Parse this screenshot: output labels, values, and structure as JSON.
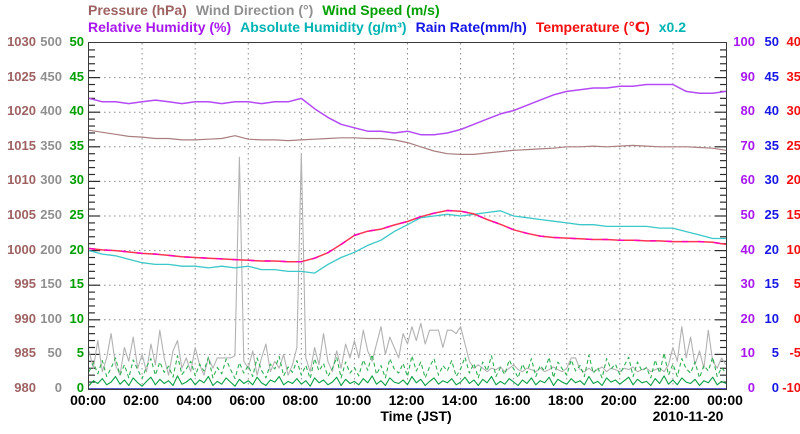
{
  "legend": {
    "pressure": "Pressure (hPa)",
    "wind_direction": "Wind Direction (°)",
    "wind_speed": "Wind Speed (m/s)",
    "relative_humidity": "Relative Humidity (%)",
    "absolute_humidity": "Absolute Humidity (g/m³)",
    "rain_rate": "Rain Rate(mm/h)",
    "temperature": "Temperature (℃)",
    "scale_note": "x0.2"
  },
  "colors": {
    "pressure": "#9e6262",
    "wind_direction": "#909090",
    "wind_speed": "#00a000",
    "relative_humidity": "#a816f0",
    "absolute_humidity": "#00b4b4",
    "rain_rate": "#1616e6",
    "temperature": "#f50f0f",
    "scale_note": "#00b4b4",
    "axis_text": "#000000",
    "grid": "#8c8c8c",
    "plot_border": "#3a3a3a"
  },
  "y_axes": {
    "left_columns": [
      {
        "name": "pressure",
        "unit": "hPa",
        "color": "#9e6262",
        "values": [
          "1030",
          "1025",
          "1020",
          "1015",
          "1010",
          "1005",
          "1000",
          "995",
          "990",
          "985",
          "980"
        ]
      },
      {
        "name": "wind_direction",
        "unit": "deg",
        "color": "#909090",
        "values": [
          "500",
          "450",
          "400",
          "350",
          "300",
          "250",
          "200",
          "150",
          "100",
          "50",
          "0"
        ]
      },
      {
        "name": "wind_speed",
        "unit": "m/s",
        "color": "#00a000",
        "values": [
          "50",
          "45",
          "40",
          "35",
          "30",
          "25",
          "20",
          "15",
          "10",
          "5",
          "0"
        ]
      }
    ],
    "right_columns": [
      {
        "name": "relative_humidity",
        "unit": "%",
        "color": "#a816f0",
        "values": [
          "100",
          "90",
          "80",
          "70",
          "60",
          "50",
          "40",
          "30",
          "20",
          "10",
          "0"
        ]
      },
      {
        "name": "rain_rate",
        "unit": "mm/h",
        "color": "#1616e6",
        "values": [
          "50",
          "45",
          "40",
          "35",
          "30",
          "25",
          "20",
          "15",
          "10",
          "5",
          "0"
        ]
      },
      {
        "name": "temperature",
        "unit": "C",
        "color": "#f50f0f",
        "values": [
          "40",
          "35",
          "30",
          "25",
          "20",
          "15",
          "10",
          "5",
          "0",
          "-5",
          "-10"
        ]
      }
    ]
  },
  "x_axis": {
    "labels": [
      "00:00",
      "02:00",
      "04:00",
      "06:00",
      "08:00",
      "10:00",
      "12:00",
      "14:00",
      "16:00",
      "18:00",
      "20:00",
      "22:00",
      "00:00"
    ],
    "title": "Time (JST)",
    "date": "2010-11-20"
  },
  "chart_data": {
    "type": "line",
    "title": "Weather observations, 2010-11-20 (JST)",
    "xlabel": "Time (JST)",
    "x_range_hours": [
      0,
      24
    ],
    "x_gridlines_every_hours": 2,
    "y_gridlines": "dotted, every major tick (10 divisions)",
    "legend_position": "top",
    "scale_note": "absolute humidity read on relative-humidity axis x0.2 (0-20 g/m3)",
    "series": [
      {
        "name": "Wind Direction",
        "unit": "deg",
        "color": "#b2b2b2",
        "width": 1.1,
        "axis_range": [
          0,
          500
        ],
        "interval_h": 0.1666667,
        "values": [
          55,
          30,
          70,
          25,
          45,
          80,
          35,
          20,
          60,
          40,
          75,
          30,
          50,
          25,
          65,
          35,
          85,
          45,
          20,
          55,
          70,
          30,
          45,
          25,
          60,
          35,
          20,
          45,
          30,
          45,
          45,
          45,
          45,
          48,
          335,
          40,
          30,
          55,
          20,
          45,
          65,
          25,
          40,
          30,
          50,
          20,
          35,
          60,
          340,
          45,
          25,
          60,
          35,
          80,
          40,
          25,
          55,
          30,
          65,
          45,
          70,
          45,
          85,
          55,
          40,
          65,
          90,
          50,
          75,
          60,
          45,
          80,
          65,
          90,
          70,
          95,
          65,
          85,
          85,
          85,
          60,
          85,
          85,
          80,
          90,
          65,
          40,
          30,
          35,
          30,
          25,
          30,
          28,
          32,
          25,
          30,
          35,
          28,
          25,
          30,
          28,
          25,
          30,
          25,
          28,
          32,
          28,
          25,
          30,
          45,
          45,
          28,
          25,
          30,
          25,
          28,
          32,
          25,
          30,
          28,
          25,
          30,
          28,
          32,
          25,
          28,
          30,
          25,
          28,
          30,
          25,
          35,
          60,
          40,
          90,
          45,
          75,
          35,
          55,
          30,
          85,
          40,
          30,
          45,
          35
        ]
      },
      {
        "name": "Wind Speed (gust, dashed)",
        "unit": "m/s",
        "color": "#2eb050",
        "width": 1.1,
        "dash": "4 3",
        "axis_range": [
          0,
          50
        ],
        "interval_h": 0.1666667,
        "values": [
          2.5,
          3.8,
          2.2,
          4.1,
          1.8,
          3.0,
          4.5,
          2.0,
          3.5,
          1.6,
          4.2,
          2.8,
          1.5,
          3.2,
          4.4,
          2.0,
          3.9,
          2.4,
          3.3,
          1.7,
          4.8,
          2.1,
          2.9,
          4.0,
          1.9,
          3.6,
          2.6,
          4.6,
          1.6,
          3.1,
          2.2,
          4.3,
          2.8,
          1.5,
          3.8,
          2.3,
          3.4,
          1.8,
          4.5,
          2.7,
          1.6,
          3.6,
          2.9,
          4.7,
          1.9,
          3.2,
          2.4,
          4.1,
          2.0,
          3.4,
          1.5,
          4.4,
          2.6,
          3.7,
          1.8,
          2.9,
          4.6,
          1.6,
          3.9,
          2.3,
          3.1,
          1.9,
          4.2,
          2.7,
          5.0,
          2.1,
          3.4,
          1.6,
          4.4,
          2.9,
          2.3,
          3.7,
          1.8,
          4.8,
          2.6,
          3.9,
          1.6,
          3.2,
          4.4,
          2.0,
          3.4,
          2.6,
          4.1,
          1.8,
          2.9,
          4.6,
          2.3,
          3.7,
          1.6,
          3.9,
          2.6,
          4.8,
          1.8,
          3.1,
          2.1,
          4.2,
          2.9,
          1.6,
          3.6,
          2.3,
          4.4,
          1.8,
          3.4,
          2.6,
          4.6,
          1.6,
          3.9,
          2.9,
          2.0,
          4.2,
          2.6,
          3.4,
          1.8,
          4.9,
          2.3,
          3.1,
          1.6,
          4.4,
          2.9,
          3.6,
          2.1,
          3.4,
          4.6,
          1.8,
          3.9,
          2.6,
          3.1,
          1.6,
          4.2,
          2.3,
          5.2,
          2.0,
          3.6,
          1.8,
          4.4,
          2.9,
          2.3,
          3.9,
          1.6,
          3.4,
          2.6,
          4.6,
          1.8,
          3.1,
          2.3
        ]
      },
      {
        "name": "Wind Speed",
        "unit": "m/s",
        "color": "#0aa044",
        "width": 1.1,
        "axis_range": [
          0,
          50
        ],
        "interval_h": 0.1666667,
        "values": [
          0.5,
          1.2,
          0.8,
          1.5,
          0.6,
          1.0,
          1.8,
          0.7,
          1.3,
          0.5,
          1.6,
          0.9,
          0.4,
          1.1,
          1.7,
          0.6,
          1.4,
          0.8,
          1.2,
          0.5,
          1.9,
          0.7,
          1.0,
          1.5,
          0.6,
          1.3,
          0.9,
          1.8,
          0.5,
          1.1,
          0.7,
          1.6,
          1.0,
          0.4,
          1.4,
          0.8,
          1.2,
          0.6,
          1.7,
          0.9,
          0.5,
          1.3,
          1.0,
          1.8,
          0.6,
          1.1,
          0.8,
          1.5,
          0.7,
          1.2,
          0.4,
          1.6,
          0.9,
          1.3,
          0.6,
          1.0,
          1.7,
          0.5,
          1.4,
          0.8,
          1.1,
          0.6,
          1.5,
          0.9,
          1.9,
          0.7,
          1.2,
          0.5,
          1.6,
          1.0,
          0.8,
          1.3,
          0.6,
          1.8,
          0.9,
          1.4,
          0.5,
          1.1,
          1.6,
          0.7,
          1.2,
          0.9,
          1.5,
          0.6,
          1.0,
          1.7,
          0.8,
          1.3,
          0.5,
          1.4,
          0.9,
          1.8,
          0.6,
          1.1,
          0.7,
          1.5,
          1.0,
          0.5,
          1.3,
          0.8,
          1.6,
          0.6,
          1.2,
          0.9,
          1.7,
          0.5,
          1.4,
          1.0,
          0.7,
          1.5,
          0.9,
          1.2,
          0.6,
          1.8,
          0.8,
          1.1,
          0.5,
          1.6,
          1.0,
          1.3,
          0.7,
          1.2,
          1.7,
          0.6,
          1.4,
          0.9,
          1.1,
          0.5,
          1.5,
          0.8,
          1.9,
          0.7,
          1.3,
          0.6,
          1.6,
          1.0,
          0.8,
          1.4,
          0.5,
          1.2,
          0.9,
          1.7,
          0.6,
          1.1,
          0.8
        ]
      },
      {
        "name": "Rain Rate",
        "unit": "mm/h",
        "color": "#2222cc",
        "width": 1.4,
        "axis_range": [
          0,
          50
        ],
        "interval_h": 24,
        "values": [
          0,
          0
        ]
      },
      {
        "name": "Pressure",
        "unit": "hPa",
        "color": "#aa7e7e",
        "width": 1.2,
        "axis_range": [
          980,
          1030
        ],
        "interval_h": 0.5,
        "values": [
          1017.4,
          1017.1,
          1016.8,
          1016.5,
          1016.4,
          1016.2,
          1016.2,
          1016.0,
          1016.0,
          1016.1,
          1016.2,
          1016.6,
          1016.1,
          1016.0,
          1016.0,
          1015.9,
          1016.0,
          1016.1,
          1016.2,
          1016.3,
          1016.3,
          1016.2,
          1016.2,
          1016.0,
          1015.6,
          1015.0,
          1014.4,
          1014.0,
          1013.9,
          1013.9,
          1014.1,
          1014.3,
          1014.5,
          1014.6,
          1014.7,
          1014.8,
          1015.0,
          1015.0,
          1015.1,
          1015.0,
          1015.1,
          1015.2,
          1015.1,
          1015.0,
          1015.0,
          1015.0,
          1014.9,
          1014.8,
          1014.5
        ]
      },
      {
        "name": "Absolute Humidity",
        "unit": "g/m3",
        "color": "#3cc8c8",
        "width": 1.3,
        "axis_range": [
          0,
          20
        ],
        "interval_h": 0.5,
        "values": [
          8.0,
          7.8,
          7.7,
          7.5,
          7.3,
          7.2,
          7.2,
          7.1,
          7.1,
          7.0,
          7.1,
          7.0,
          7.1,
          6.9,
          6.9,
          6.8,
          6.8,
          6.7,
          7.2,
          7.6,
          7.9,
          8.3,
          8.6,
          9.1,
          9.5,
          9.9,
          10.0,
          10.1,
          10.0,
          10.1,
          10.2,
          10.3,
          10.0,
          9.9,
          9.8,
          9.7,
          9.6,
          9.5,
          9.5,
          9.4,
          9.4,
          9.4,
          9.4,
          9.3,
          9.3,
          9.1,
          8.9,
          8.7,
          8.7
        ]
      },
      {
        "name": "Relative Humidity",
        "unit": "%",
        "color": "#b44af5",
        "width": 1.5,
        "axis_range": [
          0,
          100
        ],
        "interval_h": 0.5,
        "values": [
          84,
          83,
          83,
          82.5,
          83,
          83.5,
          83,
          82.5,
          83,
          83,
          82.5,
          83,
          83,
          82.5,
          83,
          83,
          84,
          81,
          78.5,
          76.5,
          75.5,
          74.5,
          74.5,
          74,
          74.5,
          73.5,
          73.5,
          74,
          75,
          76.5,
          78,
          79.5,
          80.5,
          82,
          83.5,
          85,
          86,
          86.5,
          87,
          87,
          87.5,
          87.5,
          88,
          88,
          88,
          86,
          85.5,
          85.5,
          86
        ]
      },
      {
        "name": "Temperature",
        "unit": "C",
        "color": "#ff3352",
        "overlay_dash_color": "#ff00bb",
        "width": 1.5,
        "axis_range": [
          -10,
          40
        ],
        "interval_h": 0.5,
        "values": [
          10.3,
          10.1,
          10.0,
          9.8,
          9.6,
          9.5,
          9.3,
          9.1,
          9.0,
          8.9,
          8.8,
          8.7,
          8.6,
          8.5,
          8.5,
          8.4,
          8.4,
          8.9,
          9.7,
          10.9,
          12.2,
          12.8,
          13.1,
          13.7,
          14.2,
          14.9,
          15.4,
          15.8,
          15.7,
          15.3,
          14.5,
          13.8,
          13.0,
          12.5,
          12.1,
          11.9,
          11.8,
          11.7,
          11.6,
          11.6,
          11.5,
          11.5,
          11.4,
          11.4,
          11.3,
          11.3,
          11.3,
          11.2,
          10.9
        ]
      }
    ]
  }
}
